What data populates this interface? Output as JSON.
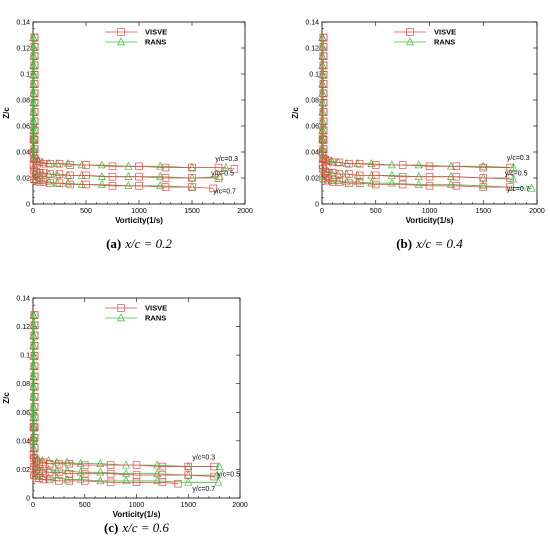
{
  "colors": {
    "visve": "#e8494a",
    "rans": "#3cbf3c"
  },
  "chart_data": [
    {
      "type": "line",
      "caption_label": "(a)",
      "caption_text": "x/c = 0.2",
      "xlabel": "Vorticity(1/s)",
      "ylabel": "Z/c",
      "xlim": [
        0,
        2000
      ],
      "ylim": [
        0,
        0.14
      ],
      "xticks": [
        0,
        500,
        1000,
        1500,
        2000
      ],
      "yticks": [
        0,
        0.02,
        0.04,
        0.06,
        0.08,
        0.1,
        0.12,
        0.14
      ],
      "legend": {
        "position": "top-center",
        "entries": [
          "VISVE",
          "RANS"
        ]
      },
      "annotations": [
        {
          "text": "y/c=0.3",
          "x": 1720,
          "y": 0.033
        },
        {
          "text": "y/c=0.5",
          "x": 1680,
          "y": 0.022
        },
        {
          "text": "y/c=0.7",
          "x": 1700,
          "y": 0.008
        }
      ],
      "series": [
        {
          "name": "VISVE",
          "curve": "y/c=0.3",
          "x": [
            0,
            5,
            10,
            30,
            60,
            100,
            160,
            250,
            350,
            500,
            750,
            1000,
            1250,
            1500,
            1750,
            1900
          ],
          "y": [
            0.13,
            0.05,
            0.035,
            0.033,
            0.032,
            0.031,
            0.031,
            0.031,
            0.03,
            0.03,
            0.029,
            0.029,
            0.028,
            0.028,
            0.028,
            0.027
          ]
        },
        {
          "name": "VISVE",
          "curve": "y/c=0.5",
          "x": [
            0,
            5,
            10,
            30,
            60,
            100,
            160,
            250,
            350,
            500,
            750,
            1000,
            1250,
            1500,
            1750
          ],
          "y": [
            0.13,
            0.04,
            0.026,
            0.025,
            0.024,
            0.024,
            0.023,
            0.023,
            0.022,
            0.022,
            0.021,
            0.021,
            0.02,
            0.02,
            0.02
          ]
        },
        {
          "name": "VISVE",
          "curve": "y/c=0.7",
          "x": [
            0,
            5,
            10,
            30,
            60,
            100,
            160,
            250,
            350,
            500,
            750,
            1000,
            1250,
            1500,
            1700
          ],
          "y": [
            0.13,
            0.03,
            0.019,
            0.018,
            0.017,
            0.017,
            0.016,
            0.016,
            0.015,
            0.015,
            0.014,
            0.014,
            0.013,
            0.013,
            0.012
          ]
        },
        {
          "name": "RANS",
          "curve": "y/c=0.3",
          "x": [
            0,
            3,
            8,
            20,
            50,
            90,
            150,
            230,
            330,
            460,
            650,
            900,
            1200,
            1500,
            1820
          ],
          "y": [
            0.13,
            0.06,
            0.036,
            0.034,
            0.033,
            0.032,
            0.031,
            0.031,
            0.031,
            0.03,
            0.03,
            0.029,
            0.029,
            0.028,
            0.028
          ]
        },
        {
          "name": "RANS",
          "curve": "y/c=0.5",
          "x": [
            0,
            3,
            8,
            20,
            50,
            90,
            150,
            230,
            330,
            460,
            650,
            900,
            1200,
            1500,
            1760
          ],
          "y": [
            0.13,
            0.05,
            0.027,
            0.025,
            0.024,
            0.023,
            0.023,
            0.022,
            0.022,
            0.022,
            0.021,
            0.021,
            0.021,
            0.02,
            0.021
          ]
        },
        {
          "name": "RANS",
          "curve": "y/c=0.7",
          "x": [
            0,
            3,
            8,
            20,
            50,
            90,
            150,
            230,
            330,
            460,
            650,
            900,
            1200,
            1500
          ],
          "y": [
            0.13,
            0.04,
            0.021,
            0.019,
            0.018,
            0.018,
            0.017,
            0.016,
            0.016,
            0.015,
            0.015,
            0.014,
            0.014,
            0.013
          ]
        }
      ]
    },
    {
      "type": "line",
      "caption_label": "(b)",
      "caption_text": "x/c = 0.4",
      "xlabel": "Vorticity(1/s)",
      "ylabel": "Z/c",
      "xlim": [
        0,
        2000
      ],
      "ylim": [
        0,
        0.14
      ],
      "xticks": [
        0,
        500,
        1000,
        1500,
        2000
      ],
      "yticks": [
        0,
        0.02,
        0.04,
        0.06,
        0.08,
        0.1,
        0.12,
        0.14
      ],
      "legend": {
        "position": "top-center",
        "entries": [
          "VISVE",
          "RANS"
        ]
      },
      "annotations": [
        {
          "text": "y/c=0.3",
          "x": 1720,
          "y": 0.034
        },
        {
          "text": "y/c=0.5",
          "x": 1700,
          "y": 0.022
        },
        {
          "text": "y/c=0.7",
          "x": 1720,
          "y": 0.01
        }
      ],
      "series": [
        {
          "name": "VISVE",
          "curve": "y/c=0.3",
          "x": [
            0,
            5,
            10,
            30,
            60,
            100,
            160,
            250,
            350,
            500,
            750,
            1000,
            1250,
            1500,
            1750
          ],
          "y": [
            0.13,
            0.05,
            0.035,
            0.034,
            0.033,
            0.032,
            0.032,
            0.031,
            0.031,
            0.03,
            0.03,
            0.029,
            0.029,
            0.028,
            0.028
          ]
        },
        {
          "name": "VISVE",
          "curve": "y/c=0.5",
          "x": [
            0,
            5,
            10,
            30,
            60,
            100,
            160,
            250,
            350,
            500,
            750,
            1000,
            1250,
            1500,
            1750
          ],
          "y": [
            0.13,
            0.04,
            0.027,
            0.025,
            0.024,
            0.024,
            0.023,
            0.023,
            0.022,
            0.022,
            0.021,
            0.021,
            0.021,
            0.02,
            0.02
          ]
        },
        {
          "name": "VISVE",
          "curve": "y/c=0.7",
          "x": [
            0,
            5,
            10,
            30,
            60,
            100,
            160,
            250,
            350,
            500,
            750,
            1000,
            1250,
            1500,
            1750
          ],
          "y": [
            0.13,
            0.03,
            0.02,
            0.018,
            0.018,
            0.017,
            0.017,
            0.016,
            0.016,
            0.015,
            0.015,
            0.014,
            0.014,
            0.013,
            0.013
          ]
        },
        {
          "name": "RANS",
          "curve": "y/c=0.3",
          "x": [
            0,
            3,
            8,
            20,
            50,
            90,
            150,
            230,
            330,
            460,
            650,
            900,
            1200,
            1500,
            1780
          ],
          "y": [
            0.13,
            0.06,
            0.036,
            0.034,
            0.033,
            0.033,
            0.032,
            0.031,
            0.031,
            0.031,
            0.03,
            0.03,
            0.029,
            0.029,
            0.028
          ]
        },
        {
          "name": "RANS",
          "curve": "y/c=0.5",
          "x": [
            0,
            3,
            8,
            20,
            50,
            90,
            150,
            230,
            330,
            460,
            650,
            900,
            1200,
            1500,
            1780
          ],
          "y": [
            0.13,
            0.05,
            0.027,
            0.025,
            0.025,
            0.024,
            0.023,
            0.023,
            0.022,
            0.022,
            0.022,
            0.021,
            0.021,
            0.02,
            0.019
          ]
        },
        {
          "name": "RANS",
          "curve": "y/c=0.7",
          "x": [
            0,
            3,
            8,
            20,
            50,
            90,
            150,
            230,
            330,
            460,
            650,
            900,
            1200,
            1500,
            1950
          ],
          "y": [
            0.13,
            0.04,
            0.021,
            0.019,
            0.019,
            0.018,
            0.018,
            0.017,
            0.017,
            0.016,
            0.016,
            0.015,
            0.015,
            0.014,
            0.012
          ]
        }
      ]
    },
    {
      "type": "line",
      "caption_label": "(c)",
      "caption_text": "x/c = 0.6",
      "xlabel": "Vorticity(1/s)",
      "ylabel": "Z/c",
      "xlim": [
        0,
        2000
      ],
      "ylim": [
        0,
        0.14
      ],
      "xticks": [
        0,
        500,
        1000,
        1500,
        2000
      ],
      "yticks": [
        0,
        0.02,
        0.04,
        0.06,
        0.08,
        0.1,
        0.12,
        0.14
      ],
      "legend": {
        "position": "top-center",
        "entries": [
          "VISVE",
          "RANS"
        ]
      },
      "annotations": [
        {
          "text": "y/c=0.3",
          "x": 1540,
          "y": 0.027
        },
        {
          "text": "y/c=0.5",
          "x": 1780,
          "y": 0.015
        },
        {
          "text": "y/c=0.7",
          "x": 1540,
          "y": 0.005
        }
      ],
      "series": [
        {
          "name": "VISVE",
          "curve": "y/c=0.3",
          "x": [
            0,
            5,
            10,
            30,
            60,
            100,
            160,
            250,
            350,
            500,
            750,
            1000,
            1250,
            1500,
            1750
          ],
          "y": [
            0.13,
            0.05,
            0.028,
            0.026,
            0.025,
            0.025,
            0.024,
            0.024,
            0.024,
            0.023,
            0.023,
            0.023,
            0.022,
            0.022,
            0.022
          ]
        },
        {
          "name": "VISVE",
          "curve": "y/c=0.5",
          "x": [
            0,
            5,
            10,
            30,
            60,
            100,
            160,
            250,
            350,
            500,
            750,
            1000,
            1250,
            1500,
            1750
          ],
          "y": [
            0.13,
            0.04,
            0.022,
            0.02,
            0.019,
            0.019,
            0.018,
            0.018,
            0.017,
            0.017,
            0.017,
            0.016,
            0.016,
            0.016,
            0.015
          ]
        },
        {
          "name": "VISVE",
          "curve": "y/c=0.7",
          "x": [
            0,
            5,
            10,
            30,
            60,
            100,
            160,
            250,
            350,
            500,
            750,
            1000,
            1250,
            1400
          ],
          "y": [
            0.13,
            0.03,
            0.016,
            0.014,
            0.014,
            0.013,
            0.013,
            0.012,
            0.012,
            0.012,
            0.011,
            0.011,
            0.011,
            0.01
          ]
        },
        {
          "name": "RANS",
          "curve": "y/c=0.3",
          "x": [
            0,
            3,
            8,
            20,
            50,
            90,
            150,
            230,
            330,
            460,
            650,
            900,
            1200,
            1500,
            1800
          ],
          "y": [
            0.13,
            0.06,
            0.03,
            0.028,
            0.027,
            0.026,
            0.026,
            0.025,
            0.025,
            0.024,
            0.024,
            0.023,
            0.023,
            0.022,
            0.022
          ]
        },
        {
          "name": "RANS",
          "curve": "y/c=0.5",
          "x": [
            0,
            3,
            8,
            20,
            50,
            90,
            150,
            230,
            330,
            460,
            650,
            900,
            1200,
            1500,
            1780
          ],
          "y": [
            0.13,
            0.05,
            0.024,
            0.022,
            0.021,
            0.02,
            0.02,
            0.019,
            0.019,
            0.018,
            0.018,
            0.017,
            0.017,
            0.016,
            0.016
          ]
        },
        {
          "name": "RANS",
          "curve": "y/c=0.7",
          "x": [
            0,
            3,
            8,
            20,
            50,
            90,
            150,
            230,
            330,
            460,
            650,
            900,
            1200,
            1500,
            1790
          ],
          "y": [
            0.13,
            0.04,
            0.018,
            0.016,
            0.015,
            0.015,
            0.014,
            0.014,
            0.013,
            0.013,
            0.012,
            0.012,
            0.012,
            0.011,
            0.011
          ]
        }
      ]
    }
  ]
}
